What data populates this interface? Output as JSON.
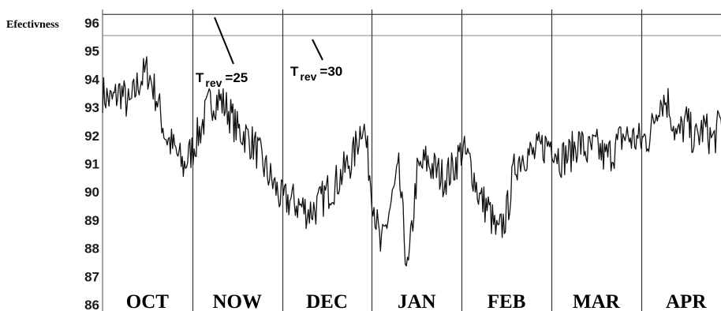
{
  "chart_data": {
    "type": "line",
    "ylabel": "Efectivness",
    "ylim": [
      86,
      96.4
    ],
    "y_ticks": [
      "96",
      "95",
      "94",
      "93",
      "92",
      "91",
      "90",
      "89",
      "88",
      "87",
      "86"
    ],
    "months": [
      "OCT",
      "NOW",
      "DEC",
      "JAN",
      "FEB",
      "MAR",
      "APR"
    ],
    "reference_lines": [
      96.3,
      95.55
    ],
    "grid": "vertical month separators",
    "annotations": [
      {
        "main": "T",
        "sub": "rev",
        "value": "=25"
      },
      {
        "main": "T",
        "sub": "rev",
        "value": "=30"
      }
    ],
    "series": [
      {
        "x": [
          0,
          0.1,
          0.2,
          0.3,
          0.4,
          0.5,
          0.6,
          0.7,
          0.8,
          0.9,
          1,
          1.1,
          1.2,
          1.3,
          1.4,
          1.5,
          1.6,
          1.7,
          1.8,
          1.9,
          2,
          2.1,
          2.2,
          2.3,
          2.4,
          2.5,
          2.6,
          2.7,
          2.8,
          2.9,
          3,
          3.1,
          3.2,
          3.3,
          3.4,
          3.5,
          3.6,
          3.7,
          3.8,
          3.9,
          4,
          4.1,
          4.2,
          4.3,
          4.4,
          4.5,
          4.6,
          4.7,
          4.8,
          4.9,
          5,
          5.1,
          5.2,
          5.3,
          5.4,
          5.5,
          5.6,
          5.7,
          5.8,
          5.9,
          6,
          6.1,
          6.2,
          6.3,
          6.4,
          6.5,
          6.6,
          6.7,
          6.8,
          6.9
        ],
        "values": [
          93.5,
          93.2,
          93.6,
          93.0,
          93.9,
          94.3,
          93.4,
          92.0,
          91.5,
          90.9,
          91.5,
          92.3,
          93.2,
          93.3,
          92.9,
          92.2,
          92.0,
          91.6,
          90.9,
          90.3,
          89.7,
          89.7,
          89.5,
          89.3,
          89.5,
          90.0,
          90.3,
          90.8,
          91.3,
          92.6,
          90.1,
          87.9,
          89.4,
          90.7,
          87.0,
          90.6,
          91.1,
          90.8,
          90.5,
          90.8,
          91.5,
          91.0,
          89.8,
          89.4,
          88.4,
          89.2,
          91.0,
          91.4,
          91.3,
          91.6,
          91.8,
          91.2,
          91.3,
          91.8,
          91.4,
          91.6,
          91.2,
          91.5,
          92.0,
          91.9,
          91.8,
          92.0,
          93.3,
          93.2,
          91.9,
          92.5,
          91.8,
          92.3,
          91.8,
          92.6
        ]
      }
    ]
  }
}
